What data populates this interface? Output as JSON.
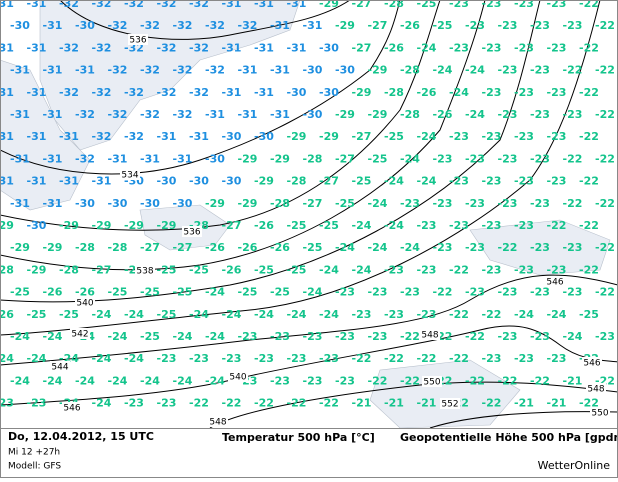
{
  "map": {
    "temperature_rows": [
      [
        -31,
        -31,
        -32,
        -32,
        -32,
        -32,
        -32,
        -31,
        -31,
        -31,
        -29,
        -27,
        -28,
        -25,
        -23,
        -23,
        -23,
        -23,
        -22
      ],
      [
        -30,
        -31,
        -30,
        -32,
        -32,
        -32,
        -32,
        -32,
        -31,
        -31,
        -29,
        -27,
        -26,
        -25,
        -23,
        -23,
        -23,
        -23,
        -22
      ],
      [
        -31,
        -31,
        -32,
        -32,
        -32,
        -32,
        -32,
        -31,
        -31,
        -31,
        -30,
        -27,
        -26,
        -24,
        -23,
        -23,
        -23,
        -23,
        -22
      ],
      [
        -31,
        -31,
        -31,
        -32,
        -32,
        -32,
        -32,
        -31,
        -31,
        -30,
        -30,
        -29,
        -28,
        -24,
        -24,
        -23,
        -23,
        -22,
        -22
      ],
      [
        -31,
        -31,
        -32,
        -32,
        -32,
        -32,
        -32,
        -31,
        -31,
        -30,
        -30,
        -29,
        -28,
        -26,
        -24,
        -23,
        -23,
        -23,
        -22
      ],
      [
        -31,
        -31,
        -32,
        -32,
        -32,
        -32,
        -31,
        -31,
        -31,
        -30,
        -29,
        -29,
        -28,
        -26,
        -24,
        -23,
        -23,
        -23,
        -22
      ],
      [
        -31,
        -31,
        -31,
        -32,
        -32,
        -31,
        -31,
        -30,
        -30,
        -29,
        -29,
        -27,
        -25,
        -24,
        -23,
        -23,
        -23,
        -23,
        -22
      ],
      [
        -31,
        -31,
        -32,
        -31,
        -31,
        -31,
        -30,
        -29,
        -29,
        -28,
        -27,
        -25,
        -24,
        -23,
        -23,
        -23,
        -23,
        -22,
        -22
      ],
      [
        -31,
        -31,
        -31,
        -31,
        -30,
        -30,
        -30,
        -30,
        -29,
        -28,
        -27,
        -25,
        -24,
        -24,
        -23,
        -23,
        -23,
        -23,
        -22
      ],
      [
        -31,
        -31,
        -30,
        -30,
        -30,
        -30,
        -29,
        -29,
        -28,
        -27,
        -25,
        -24,
        -23,
        -23,
        -23,
        -23,
        -23,
        -22,
        -22
      ],
      [
        -29,
        -30,
        -29,
        -29,
        -29,
        -29,
        -28,
        -27,
        -26,
        -25,
        -25,
        -24,
        -24,
        -23,
        -23,
        -23,
        -23,
        -22,
        -22
      ],
      [
        -29,
        -29,
        -28,
        -28,
        -27,
        -27,
        -26,
        -26,
        -26,
        -25,
        -24,
        -24,
        -24,
        -23,
        -23,
        -22,
        -23,
        -23,
        -22
      ],
      [
        -28,
        -29,
        -28,
        -27,
        -26,
        -25,
        -25,
        -26,
        -25,
        -25,
        -24,
        -24,
        -23,
        -23,
        -22,
        -23,
        -23,
        -23,
        -22
      ],
      [
        -25,
        -26,
        -26,
        -25,
        -25,
        -25,
        -24,
        -25,
        -25,
        -24,
        -23,
        -23,
        -23,
        -22,
        -23,
        -23,
        -23,
        -23,
        -22
      ],
      [
        -26,
        -25,
        -25,
        -24,
        -24,
        -25,
        -24,
        -24,
        -24,
        -24,
        -24,
        -23,
        -23,
        -23,
        -22,
        -22,
        -24,
        -24,
        -25
      ],
      [
        -24,
        -24,
        -24,
        -24,
        -25,
        -24,
        -24,
        -23,
        -23,
        -23,
        -23,
        -23,
        -22,
        -22,
        -22,
        -23,
        -23,
        -24,
        -23
      ],
      [
        -24,
        -24,
        -24,
        -24,
        -24,
        -23,
        -23,
        -23,
        -23,
        -23,
        -23,
        -22,
        -22,
        -22,
        -22,
        -23,
        -23,
        -23,
        -22
      ],
      [
        -24,
        -24,
        -24,
        -24,
        -24,
        -24,
        -24,
        -23,
        -23,
        -23,
        -23,
        -22,
        -22,
        -22,
        -22,
        -22,
        -22,
        -21,
        -22
      ],
      [
        -23,
        -23,
        -24,
        -24,
        -23,
        -23,
        -22,
        -22,
        -22,
        -22,
        -22,
        -21,
        -21,
        -21,
        -22,
        -22,
        -21,
        -21,
        -22
      ]
    ],
    "temperature_colors": {
      "-32": "#1e8fe0",
      "-31": "#1e8fe0",
      "-30": "#1e8fe0"
    },
    "default_color": "#14c48c",
    "height_labels": [
      "536",
      "534",
      "536",
      "538",
      "540",
      "542",
      "544",
      "546",
      "548",
      "540",
      "546",
      "548",
      "550",
      "552",
      "546",
      "548",
      "550"
    ],
    "footer": {
      "date": "Do, 12.04.2012, 15 UTC",
      "run": "Mi 12 +27h",
      "model": "Modell: GFS",
      "temperature_title": "Temperatur 500 hPa [°C]",
      "height_title": "Geopotentielle Höhe 500 hPa [gpdm]",
      "brand": "WetterOnline"
    }
  }
}
